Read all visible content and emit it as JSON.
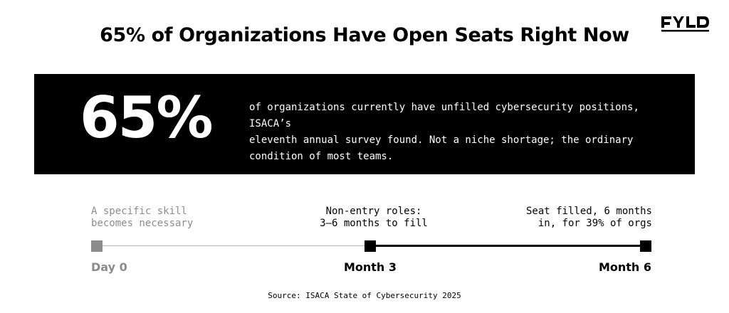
{
  "brand": {
    "logo_text": "FYLD"
  },
  "title": "65% of Organizations Have Open Seats Right Now",
  "stat": {
    "value": "65%",
    "description_lines": [
      "of organizations currently have unfilled cybersecurity positions, ISACA’s",
      "eleventh annual survey found. Not a niche shortage; the ordinary",
      "condition of most teams."
    ]
  },
  "timeline": {
    "points": [
      {
        "label_lines": [
          "A specific skill",
          "becomes necessary"
        ],
        "tick": "Day 0",
        "color": "#8c8c8c"
      },
      {
        "label_lines": [
          "Non-entry roles:",
          "3–6 months to fill"
        ],
        "tick": "Month 3",
        "color": "#000000"
      },
      {
        "label_lines": [
          "Seat filled, 6 months",
          "in, for 39% of orgs"
        ],
        "tick": "Month 6",
        "color": "#000000"
      }
    ]
  },
  "source": "Source: ISACA State of Cybersecurity 2025"
}
